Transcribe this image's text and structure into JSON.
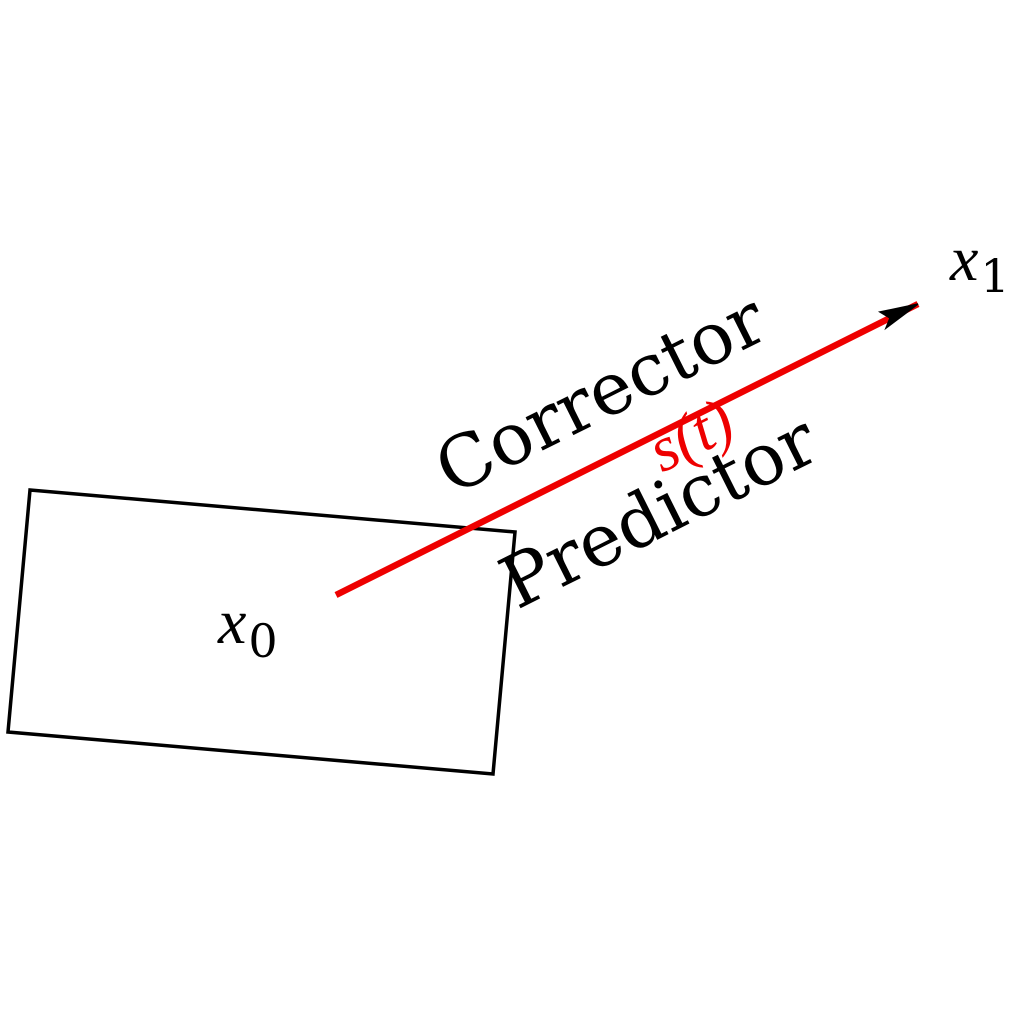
{
  "diagram": {
    "start_label": "x",
    "start_subscript": "0",
    "end_label": "x",
    "end_subscript": "1",
    "path_label": "s(t)",
    "above_label": "Corrector",
    "below_label": "Predictor",
    "colors": {
      "path": "#ee0000",
      "outline": "#000000",
      "text": "#000000",
      "path_label": "#ee0000"
    }
  }
}
